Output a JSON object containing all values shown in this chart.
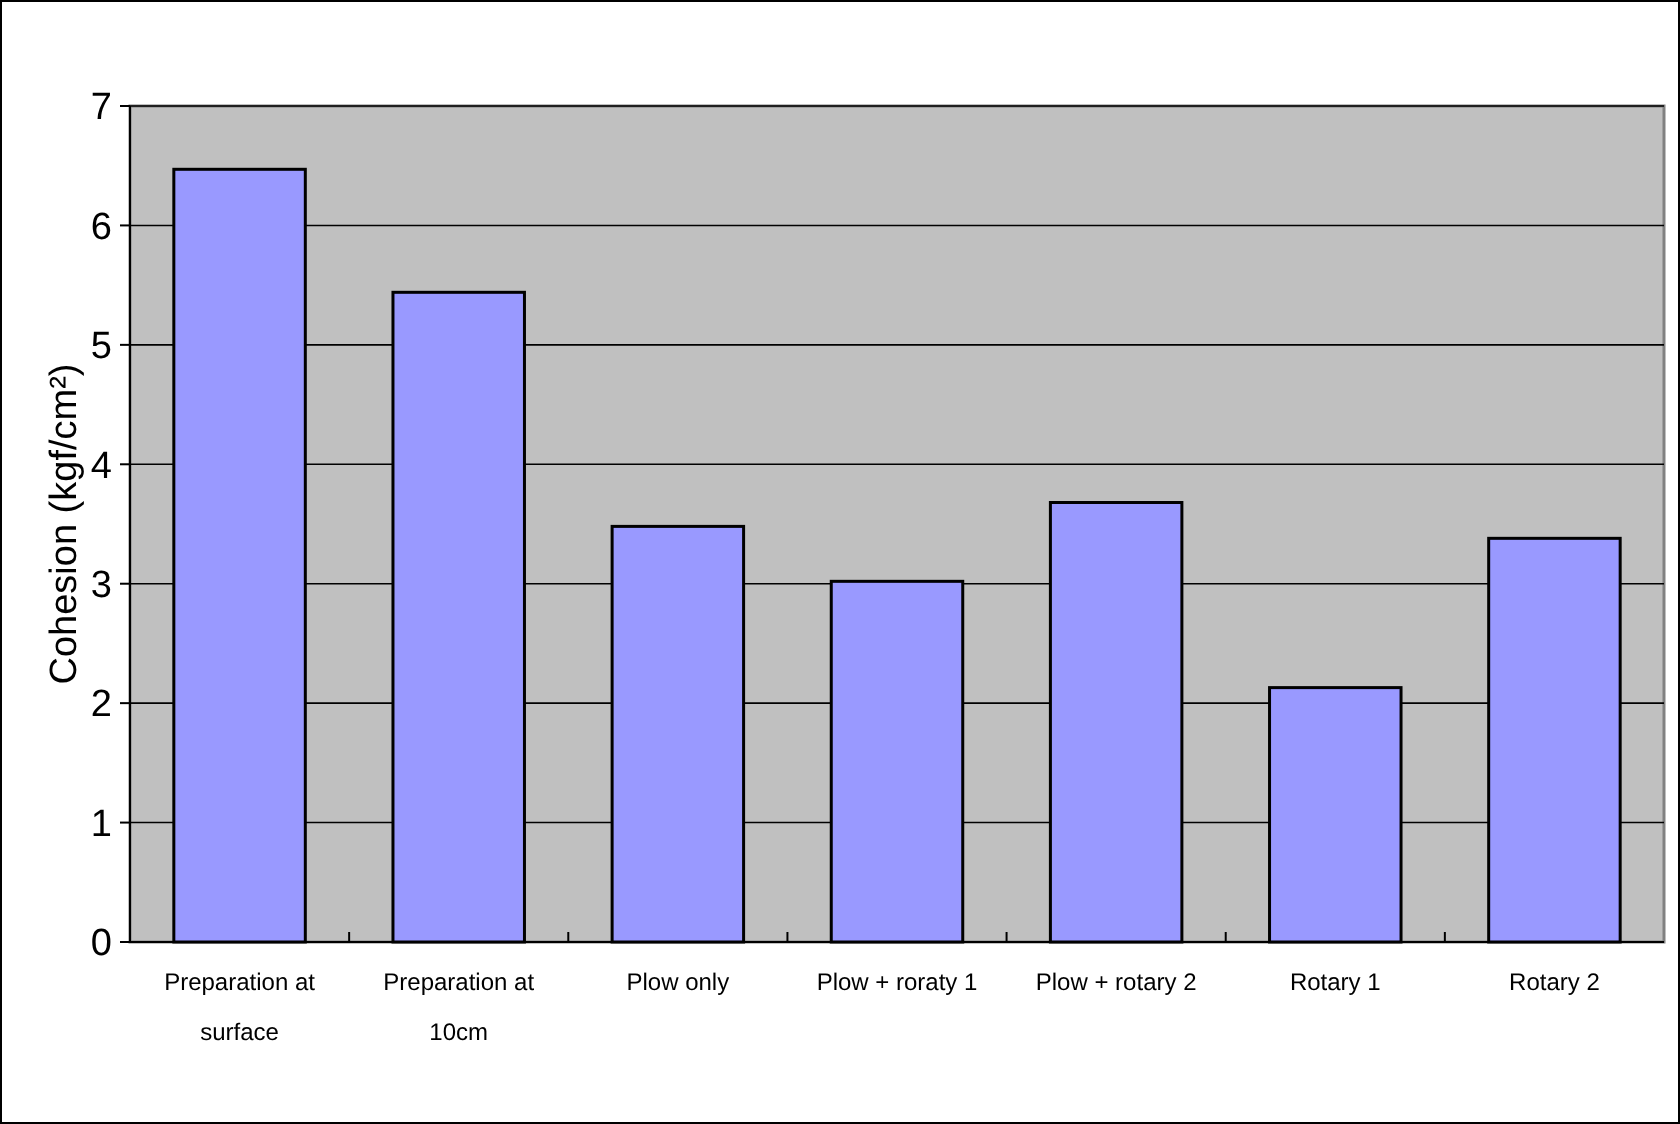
{
  "chart_data": {
    "type": "bar",
    "ylabel": "Cohesion (kgf/cm²)",
    "categories": [
      "Preparation at surface",
      "Preparation at 10cm",
      "Plow only",
      "Plow + roraty 1",
      "Plow + rotary 2",
      "Rotary 1",
      "Rotary 2"
    ],
    "values": [
      6.47,
      5.44,
      3.48,
      3.02,
      3.68,
      2.13,
      3.38
    ],
    "color": "#9999ff",
    "ylim": [
      0,
      7
    ],
    "yticks": [
      0,
      1,
      2,
      3,
      4,
      5,
      6,
      7
    ],
    "grid": "y"
  }
}
